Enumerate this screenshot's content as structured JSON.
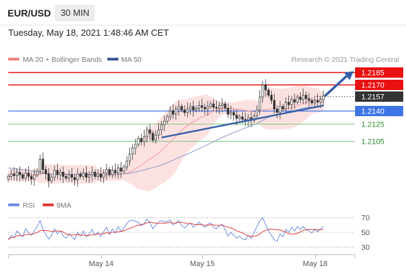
{
  "header": {
    "instrument": "EUR/USD",
    "timeframe": "30 MIN"
  },
  "timestamp": "Tuesday, May 18, 2021 1:48:46 AM CET",
  "legend": {
    "ma20_bb_label": "MA 20 + Bollinger Bands",
    "ma50_label": "MA 50",
    "copyright": "Research © 2021 Trading Central"
  },
  "colors": {
    "resistance": "#e81010",
    "pivot": "#3d75e6",
    "support": "#7fc87f",
    "current": "#333333",
    "trend_arrow": "#3560a8",
    "candle_up": "#ffffff",
    "candle_down": "#333333",
    "bollinger_fill": "#fbdcdc",
    "ma20": "#f39a9a",
    "ma50": "#8c9ac8",
    "rsi": "#6c8fe0",
    "rsi_ma": "#e23b3b"
  },
  "levels": [
    {
      "value": "1.2185",
      "kind": "resistance"
    },
    {
      "value": "1.2170",
      "kind": "resistance"
    },
    {
      "value": "1.2157",
      "kind": "current"
    },
    {
      "value": "1.2140",
      "kind": "pivot"
    },
    {
      "value": "1.2125",
      "kind": "support"
    },
    {
      "value": "1.2105",
      "kind": "support"
    }
  ],
  "rsi_panel": {
    "rsi_label": "RSI",
    "ma_label": "9MA",
    "ticks": [
      "70",
      "50",
      "30"
    ]
  },
  "x_axis": {
    "labels": [
      "May 14",
      "May 15",
      "May 18"
    ]
  },
  "chart_data": {
    "type": "candlestick",
    "ylim": [
      1.2047,
      1.2195
    ],
    "candles_close": [
      1.2064,
      1.2067,
      1.2065,
      1.2069,
      1.2066,
      1.2062,
      1.2068,
      1.2064,
      1.2061,
      1.2066,
      1.207,
      1.2084,
      1.2072,
      1.2067,
      1.2059,
      1.2063,
      1.2071,
      1.2066,
      1.2069,
      1.2064,
      1.2062,
      1.2066,
      1.2063,
      1.206,
      1.2067,
      1.2064,
      1.2068,
      1.2063,
      1.2066,
      1.2069,
      1.2064,
      1.2067,
      1.2063,
      1.2068,
      1.2072,
      1.2066,
      1.2071,
      1.2068,
      1.2074,
      1.207,
      1.2075,
      1.2082,
      1.209,
      1.2097,
      1.2101,
      1.2108,
      1.2104,
      1.211,
      1.2118,
      1.2114,
      1.2106,
      1.2112,
      1.2118,
      1.2124,
      1.2128,
      1.2133,
      1.214,
      1.2136,
      1.2142,
      1.2145,
      1.2141,
      1.2138,
      1.2142,
      1.2145,
      1.2141,
      1.2143,
      1.2146,
      1.2144,
      1.2142,
      1.2145,
      1.2148,
      1.2144,
      1.2143,
      1.2146,
      1.2148,
      1.2143,
      1.2136,
      1.2138,
      1.2135,
      1.2131,
      1.2133,
      1.213,
      1.2128,
      1.2132,
      1.2129,
      1.2134,
      1.2141,
      1.2156,
      1.217,
      1.2164,
      1.2158,
      1.2152,
      1.2142,
      1.2138,
      1.2145,
      1.2142,
      1.215,
      1.2147,
      1.2153,
      1.215,
      1.2156,
      1.2153,
      1.2158,
      1.2154,
      1.2152,
      1.2149,
      1.2152,
      1.215,
      1.2153,
      1.2157
    ],
    "trend_line": [
      1.2109,
      1.2146
    ],
    "rsi": [
      40,
      46,
      43,
      52,
      48,
      44,
      55,
      50,
      46,
      52,
      58,
      66,
      54,
      47,
      41,
      46,
      55,
      48,
      52,
      45,
      42,
      48,
      44,
      40,
      50,
      45,
      52,
      44,
      48,
      54,
      46,
      50,
      44,
      51,
      57,
      47,
      55,
      49,
      58,
      51,
      56,
      62,
      66,
      67,
      65,
      64,
      59,
      62,
      68,
      63,
      55,
      60,
      64,
      66,
      64,
      65,
      67,
      60,
      63,
      66,
      59,
      56,
      60,
      63,
      57,
      60,
      64,
      60,
      57,
      61,
      63,
      57,
      55,
      59,
      61,
      54,
      45,
      50,
      46,
      42,
      45,
      41,
      40,
      46,
      42,
      50,
      58,
      66,
      70,
      61,
      52,
      46,
      40,
      38,
      48,
      44,
      54,
      50,
      57,
      52,
      58,
      54,
      58,
      54,
      52,
      49,
      54,
      51,
      55,
      58
    ],
    "rsi_ylim": [
      20,
      80
    ]
  }
}
